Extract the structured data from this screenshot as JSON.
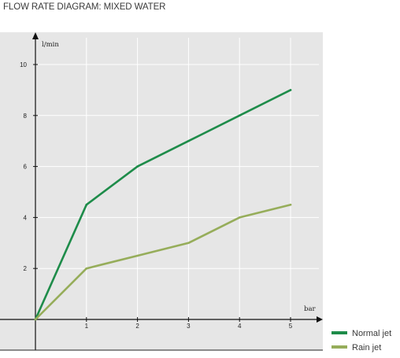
{
  "title": "FLOW RATE DIAGRAM: MIXED WATER",
  "chart_data": {
    "type": "line",
    "title": "FLOW RATE DIAGRAM: MIXED WATER",
    "xlabel": "bar",
    "ylabel": "l/min",
    "x": [
      0,
      1,
      2,
      3,
      4,
      5
    ],
    "xticks": [
      1,
      2,
      3,
      4,
      5
    ],
    "yticks": [
      2,
      4,
      6,
      8,
      10
    ],
    "xlim": [
      0,
      5
    ],
    "ylim": [
      0,
      10
    ],
    "grid": true,
    "legend_position": "bottom-right",
    "background": "#e6e6e6",
    "series": [
      {
        "name": "Normal jet",
        "color": "#1e8c4a",
        "values": [
          0,
          4.5,
          6,
          7,
          8,
          9
        ]
      },
      {
        "name": "Rain jet",
        "color": "#96ad5a",
        "values": [
          0,
          2,
          2.5,
          3,
          4,
          4.5
        ]
      }
    ]
  }
}
